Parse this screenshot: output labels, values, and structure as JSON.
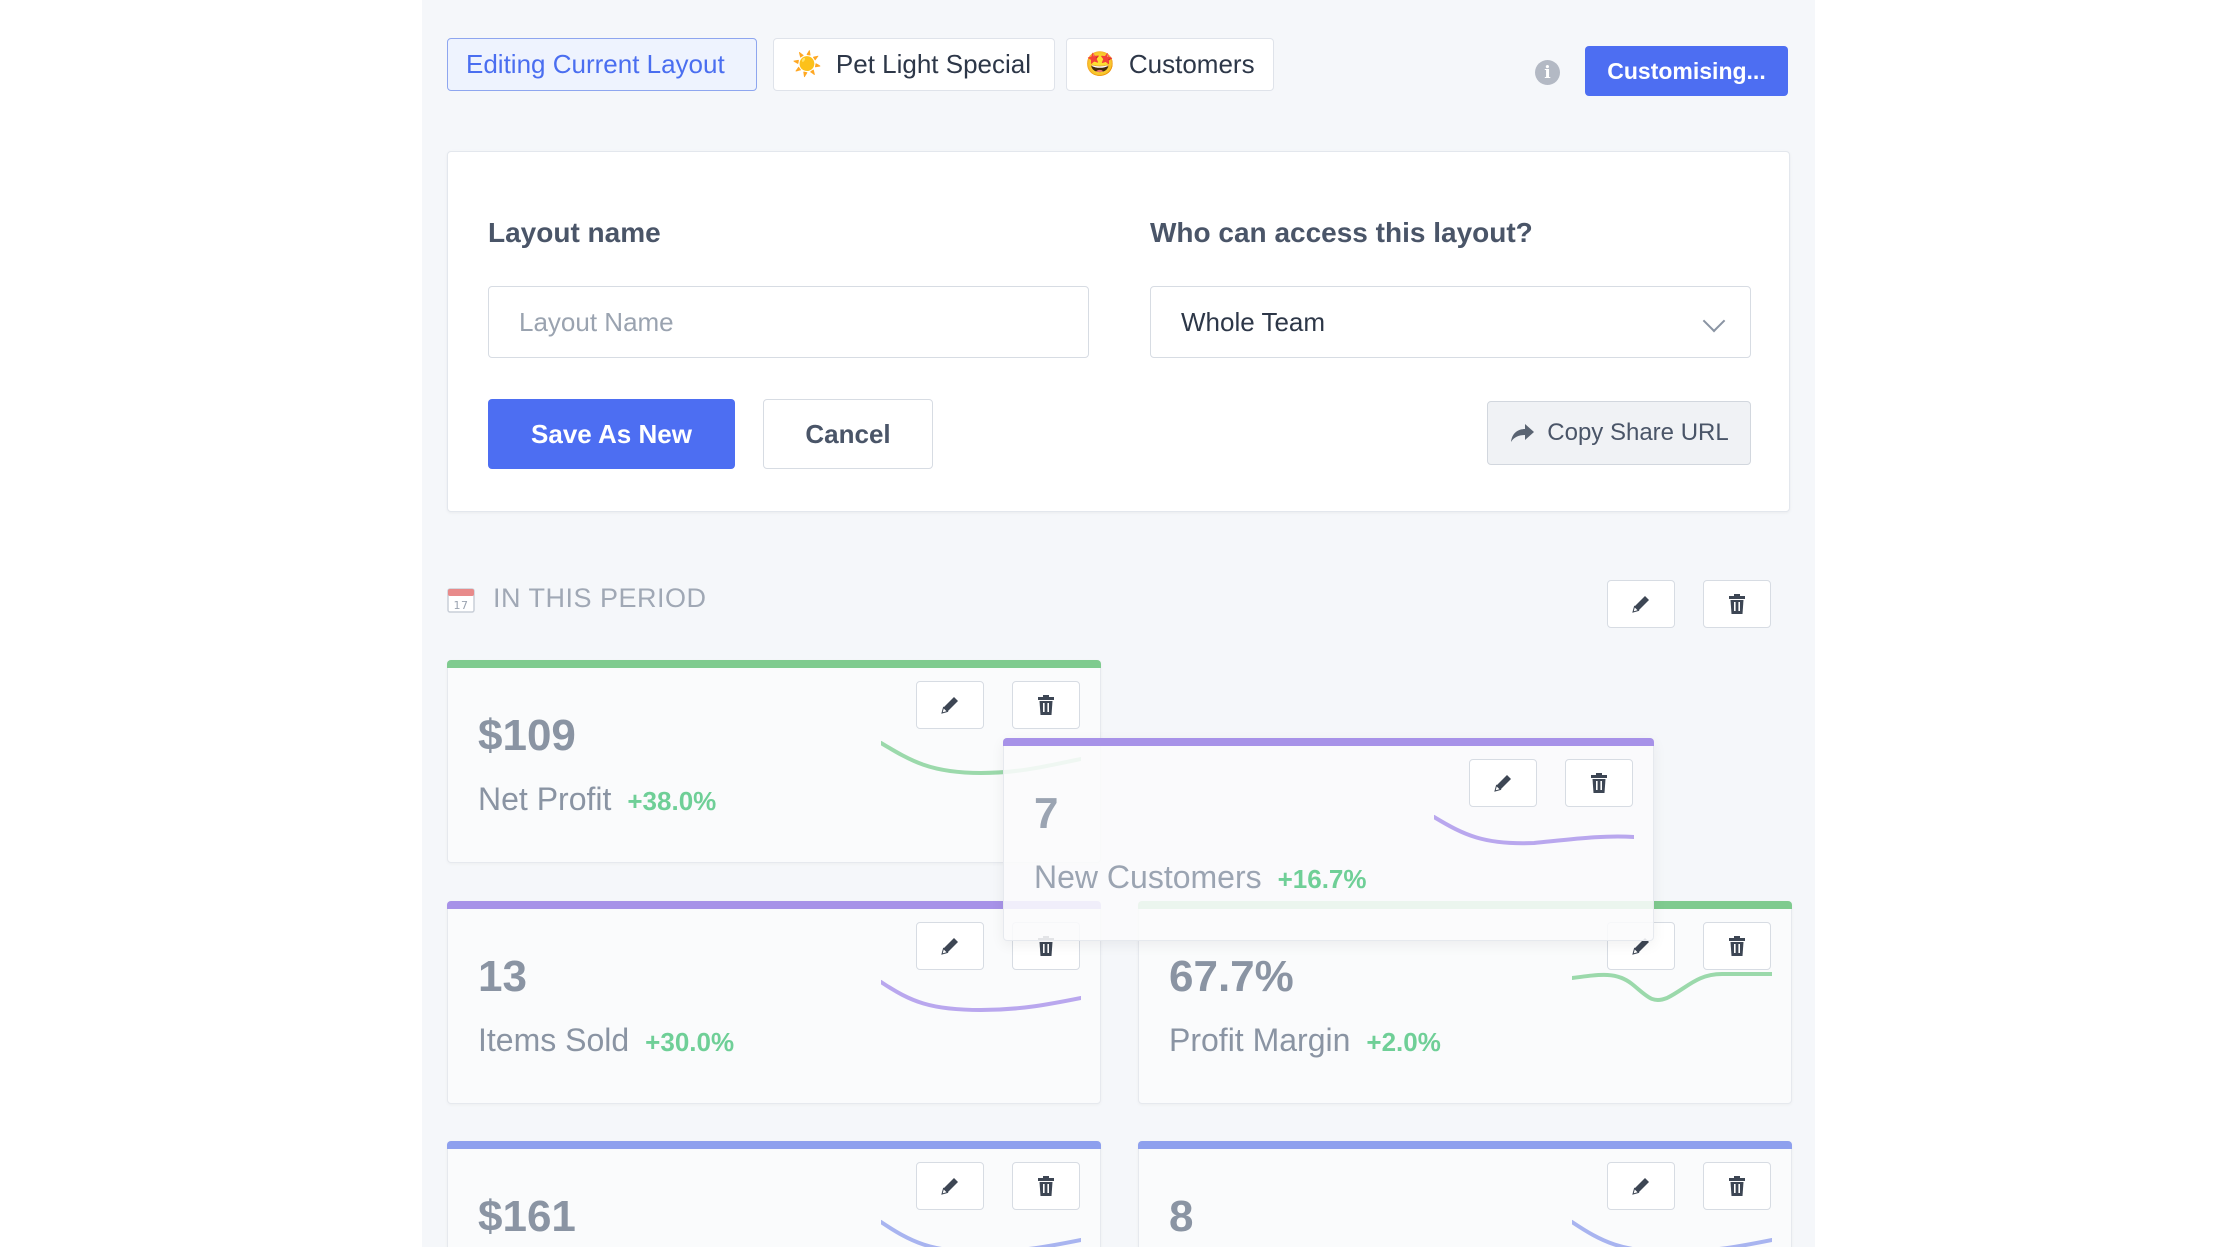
{
  "tabs": [
    {
      "label": "Editing Current Layout",
      "emoji": "",
      "active": true
    },
    {
      "label": "Pet Light Special",
      "emoji": "☀️",
      "active": false
    },
    {
      "label": "Customers",
      "emoji": "🤩",
      "active": false
    }
  ],
  "header": {
    "customise_label": "Customising...",
    "info_icon": "i"
  },
  "form": {
    "layout_name_label": "Layout name",
    "layout_name_placeholder": "Layout Name",
    "layout_name_value": "",
    "access_label": "Who can access this layout?",
    "access_value": "Whole Team",
    "save_label": "Save As New",
    "cancel_label": "Cancel",
    "share_label": "Copy Share URL"
  },
  "section": {
    "title": "IN THIS PERIOD",
    "icon": "calendar-icon"
  },
  "metrics": [
    {
      "value": "$109",
      "label": "Net Profit",
      "change": "+38.0%",
      "color": "#7fcb8f"
    },
    {
      "value": "7",
      "label": "New Customers",
      "change": "+16.7%",
      "color": "#a792e8"
    },
    {
      "value": "13",
      "label": "Items Sold",
      "change": "+30.0%",
      "color": "#a792e8"
    },
    {
      "value": "67.7%",
      "label": "Profit Margin",
      "change": "+2.0%",
      "color": "#7fcb8f"
    },
    {
      "value": "$161",
      "label": "",
      "change": "",
      "color": "#8ea0ee"
    },
    {
      "value": "8",
      "label": "",
      "change": "",
      "color": "#8ea0ee"
    }
  ],
  "colors": {
    "primary": "#4d6ef2",
    "positive": "#6fcf97",
    "green_bar": "#7fcb8f",
    "purple_bar": "#a792e8",
    "blue_bar": "#8ea0ee"
  }
}
